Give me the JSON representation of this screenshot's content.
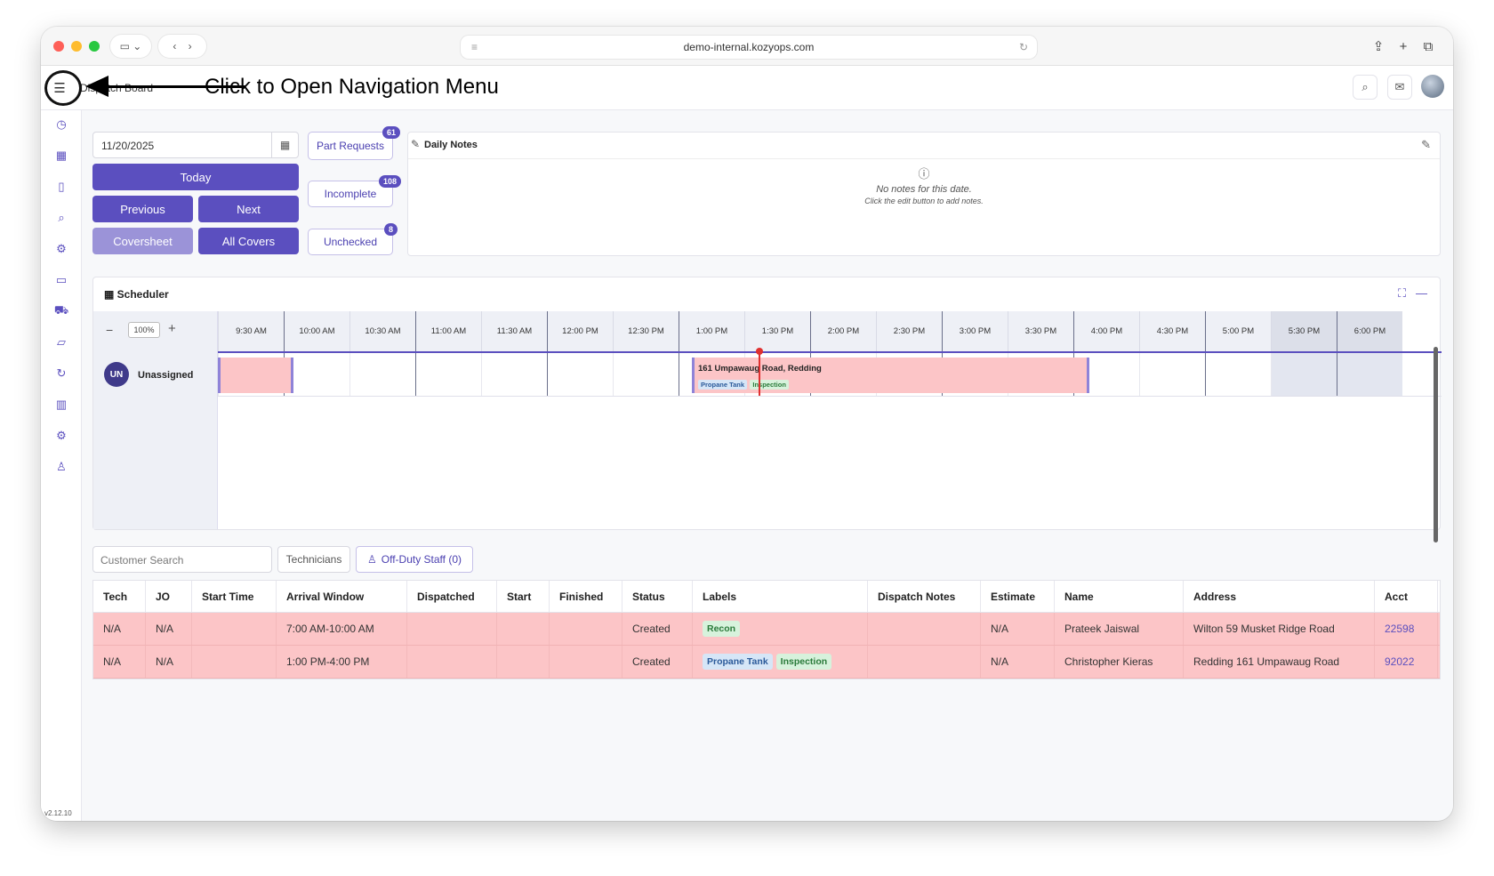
{
  "browser": {
    "url": "demo-internal.kozyops.com"
  },
  "header": {
    "title": "Dispatch Board",
    "annotation": "Click to Open Navigation Menu"
  },
  "sidebar": {
    "version": "v2.12.10",
    "items": [
      "history-icon",
      "grid-icon",
      "map-icon",
      "search-icon",
      "settings-icon",
      "wallet-icon",
      "car-icon",
      "folder-icon",
      "refresh-icon",
      "chart-icon",
      "gear-icon",
      "team-icon"
    ]
  },
  "controls": {
    "date": "11/20/2025",
    "today": "Today",
    "previous": "Previous",
    "next": "Next",
    "coversheet": "Coversheet",
    "all_covers": "All Covers",
    "part_requests": "Part Requests",
    "part_requests_count": "61",
    "incomplete": "Incomplete",
    "incomplete_count": "108",
    "unchecked": "Unchecked",
    "unchecked_count": "8"
  },
  "notes": {
    "title": "Daily Notes",
    "empty": "No notes for this date.",
    "hint": "Click the edit button to add notes."
  },
  "scheduler": {
    "title": "Scheduler",
    "zoom": "100%",
    "resource_initials": "UN",
    "resource_name": "Unassigned",
    "times": [
      "9:30 AM",
      "10:00 AM",
      "10:30 AM",
      "11:00 AM",
      "11:30 AM",
      "12:00 PM",
      "12:30 PM",
      "1:00 PM",
      "1:30 PM",
      "2:00 PM",
      "2:30 PM",
      "3:00 PM",
      "3:30 PM",
      "4:00 PM",
      "4:30 PM",
      "5:00 PM",
      "5:30 PM",
      "6:00 PM"
    ],
    "event": {
      "title": "161 Umpawaug Road, Redding",
      "tags": [
        "Propane Tank",
        "Inspection"
      ]
    }
  },
  "filters": {
    "search_placeholder": "Customer Search",
    "technicians": "Technicians",
    "off_duty": "Off-Duty Staff (0)"
  },
  "table": {
    "columns": [
      "Tech",
      "JO",
      "Start Time",
      "Arrival Window",
      "Dispatched",
      "Start",
      "Finished",
      "Status",
      "Labels",
      "Dispatch Notes",
      "Estimate",
      "Name",
      "Address",
      "Acct"
    ],
    "rows": [
      {
        "tech": "N/A",
        "jo": "N/A",
        "start_time": "",
        "arrival": "7:00 AM-10:00 AM",
        "dispatched": "",
        "start": "",
        "finished": "",
        "status": "Created",
        "labels": [
          "Recon"
        ],
        "notes": "",
        "estimate": "N/A",
        "name": "Prateek Jaiswal",
        "address": "Wilton 59 Musket Ridge Road",
        "acct": "22598"
      },
      {
        "tech": "N/A",
        "jo": "N/A",
        "start_time": "",
        "arrival": "1:00 PM-4:00 PM",
        "dispatched": "",
        "start": "",
        "finished": "",
        "status": "Created",
        "labels": [
          "Propane Tank",
          "Inspection"
        ],
        "notes": "",
        "estimate": "N/A",
        "name": "Christopher Kieras",
        "address": "Redding 161 Umpawaug Road",
        "acct": "92022"
      }
    ]
  }
}
